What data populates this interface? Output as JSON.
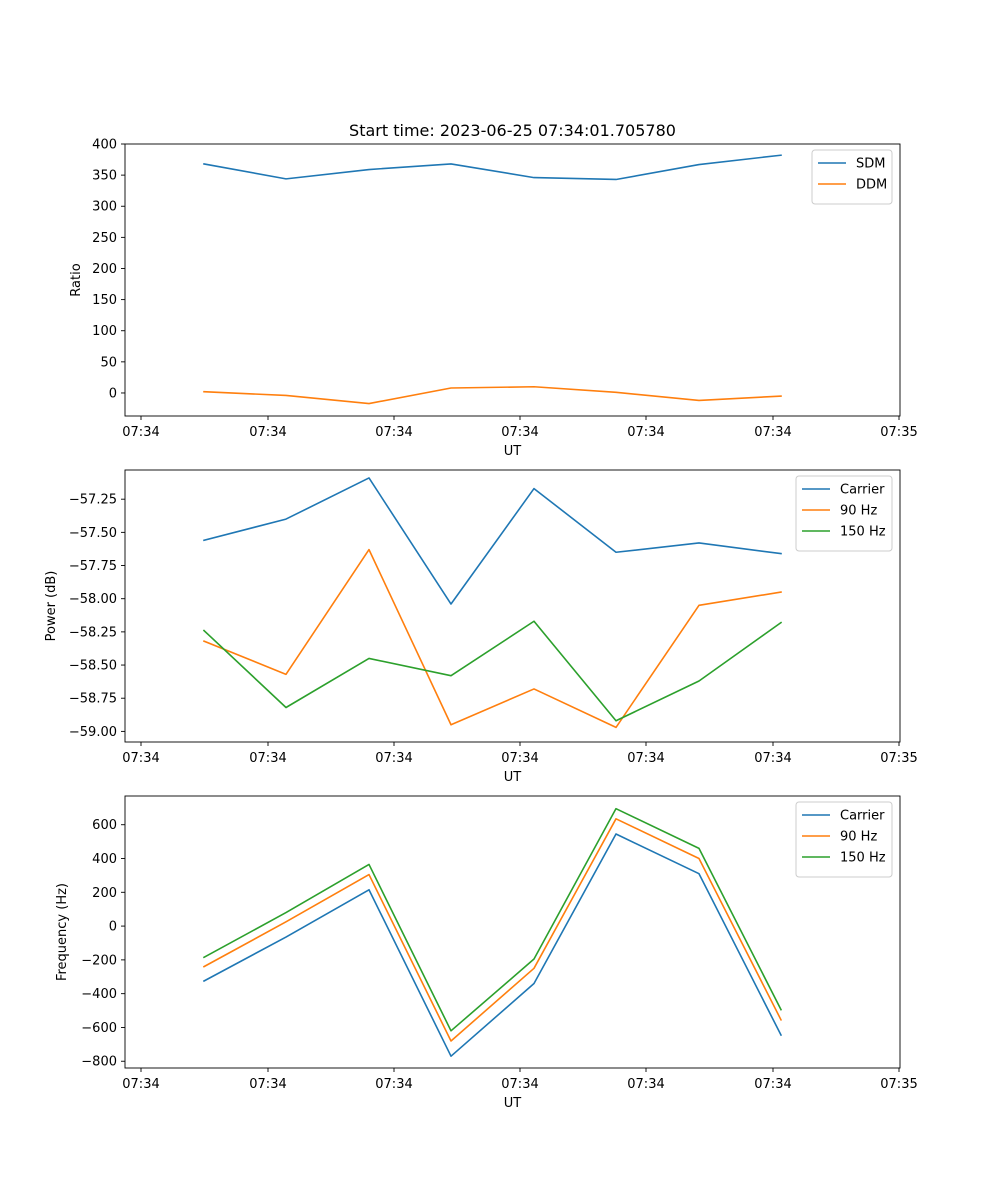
{
  "chart_data": [
    {
      "type": "line",
      "title": "Start time: 2023-06-25 07:34:01.705780",
      "xlabel": "UT",
      "ylabel": "Ratio",
      "x_tick_labels": [
        "07:34",
        "07:34",
        "07:34",
        "07:34",
        "07:34",
        "07:34",
        "07:35"
      ],
      "y_ticks": [
        0,
        50,
        100,
        150,
        200,
        250,
        300,
        350,
        400
      ],
      "ylim": [
        -37,
        400
      ],
      "grid": false,
      "legend": "upper-right",
      "series": [
        {
          "name": "SDM",
          "color": "#1f77b4",
          "values": [
            368,
            344,
            359,
            368,
            346,
            343,
            367,
            382
          ]
        },
        {
          "name": "DDM",
          "color": "#ff7f0e",
          "values": [
            2,
            -4,
            -17,
            8,
            10,
            1,
            -12,
            -5
          ]
        }
      ]
    },
    {
      "type": "line",
      "title": "",
      "xlabel": "UT",
      "ylabel": "Power (dB)",
      "x_tick_labels": [
        "07:34",
        "07:34",
        "07:34",
        "07:34",
        "07:34",
        "07:34",
        "07:35"
      ],
      "y_ticks": [
        -59.0,
        -58.75,
        -58.5,
        -58.25,
        -58.0,
        -57.75,
        -57.5,
        -57.25
      ],
      "y_tick_labels": [
        "−59.00",
        "−58.75",
        "−58.50",
        "−58.25",
        "−58.00",
        "−57.75",
        "−57.50",
        "−57.25"
      ],
      "ylim": [
        -59.08,
        -57.03
      ],
      "grid": false,
      "legend": "upper-right",
      "series": [
        {
          "name": "Carrier",
          "color": "#1f77b4",
          "values": [
            -57.56,
            -57.4,
            -57.09,
            -58.04,
            -57.17,
            -57.65,
            -57.58,
            -57.66
          ]
        },
        {
          "name": "90 Hz",
          "color": "#ff7f0e",
          "values": [
            -58.32,
            -58.57,
            -57.63,
            -58.95,
            -58.68,
            -58.97,
            -58.05,
            -57.95
          ]
        },
        {
          "name": "150 Hz",
          "color": "#2ca02c",
          "values": [
            -58.24,
            -58.82,
            -58.45,
            -58.58,
            -58.17,
            -58.92,
            -58.62,
            -58.18
          ]
        }
      ]
    },
    {
      "type": "line",
      "title": "",
      "xlabel": "UT",
      "ylabel": "Frequency (Hz)",
      "x_tick_labels": [
        "07:34",
        "07:34",
        "07:34",
        "07:34",
        "07:34",
        "07:34",
        "07:35"
      ],
      "y_ticks": [
        -800,
        -600,
        -400,
        -200,
        0,
        200,
        400,
        600
      ],
      "y_tick_labels": [
        "−800",
        "−600",
        "−400",
        "−200",
        "0",
        "200",
        "400",
        "600"
      ],
      "ylim": [
        -840,
        770
      ],
      "grid": false,
      "legend": "upper-right",
      "series": [
        {
          "name": "Carrier",
          "color": "#1f77b4",
          "values": [
            -325,
            -65,
            215,
            -770,
            -340,
            545,
            310,
            -645
          ]
        },
        {
          "name": "90 Hz",
          "color": "#ff7f0e",
          "values": [
            -240,
            25,
            305,
            -680,
            -250,
            635,
            400,
            -555
          ]
        },
        {
          "name": "150 Hz",
          "color": "#2ca02c",
          "values": [
            -185,
            80,
            365,
            -620,
            -195,
            695,
            460,
            -495
          ]
        }
      ]
    }
  ]
}
